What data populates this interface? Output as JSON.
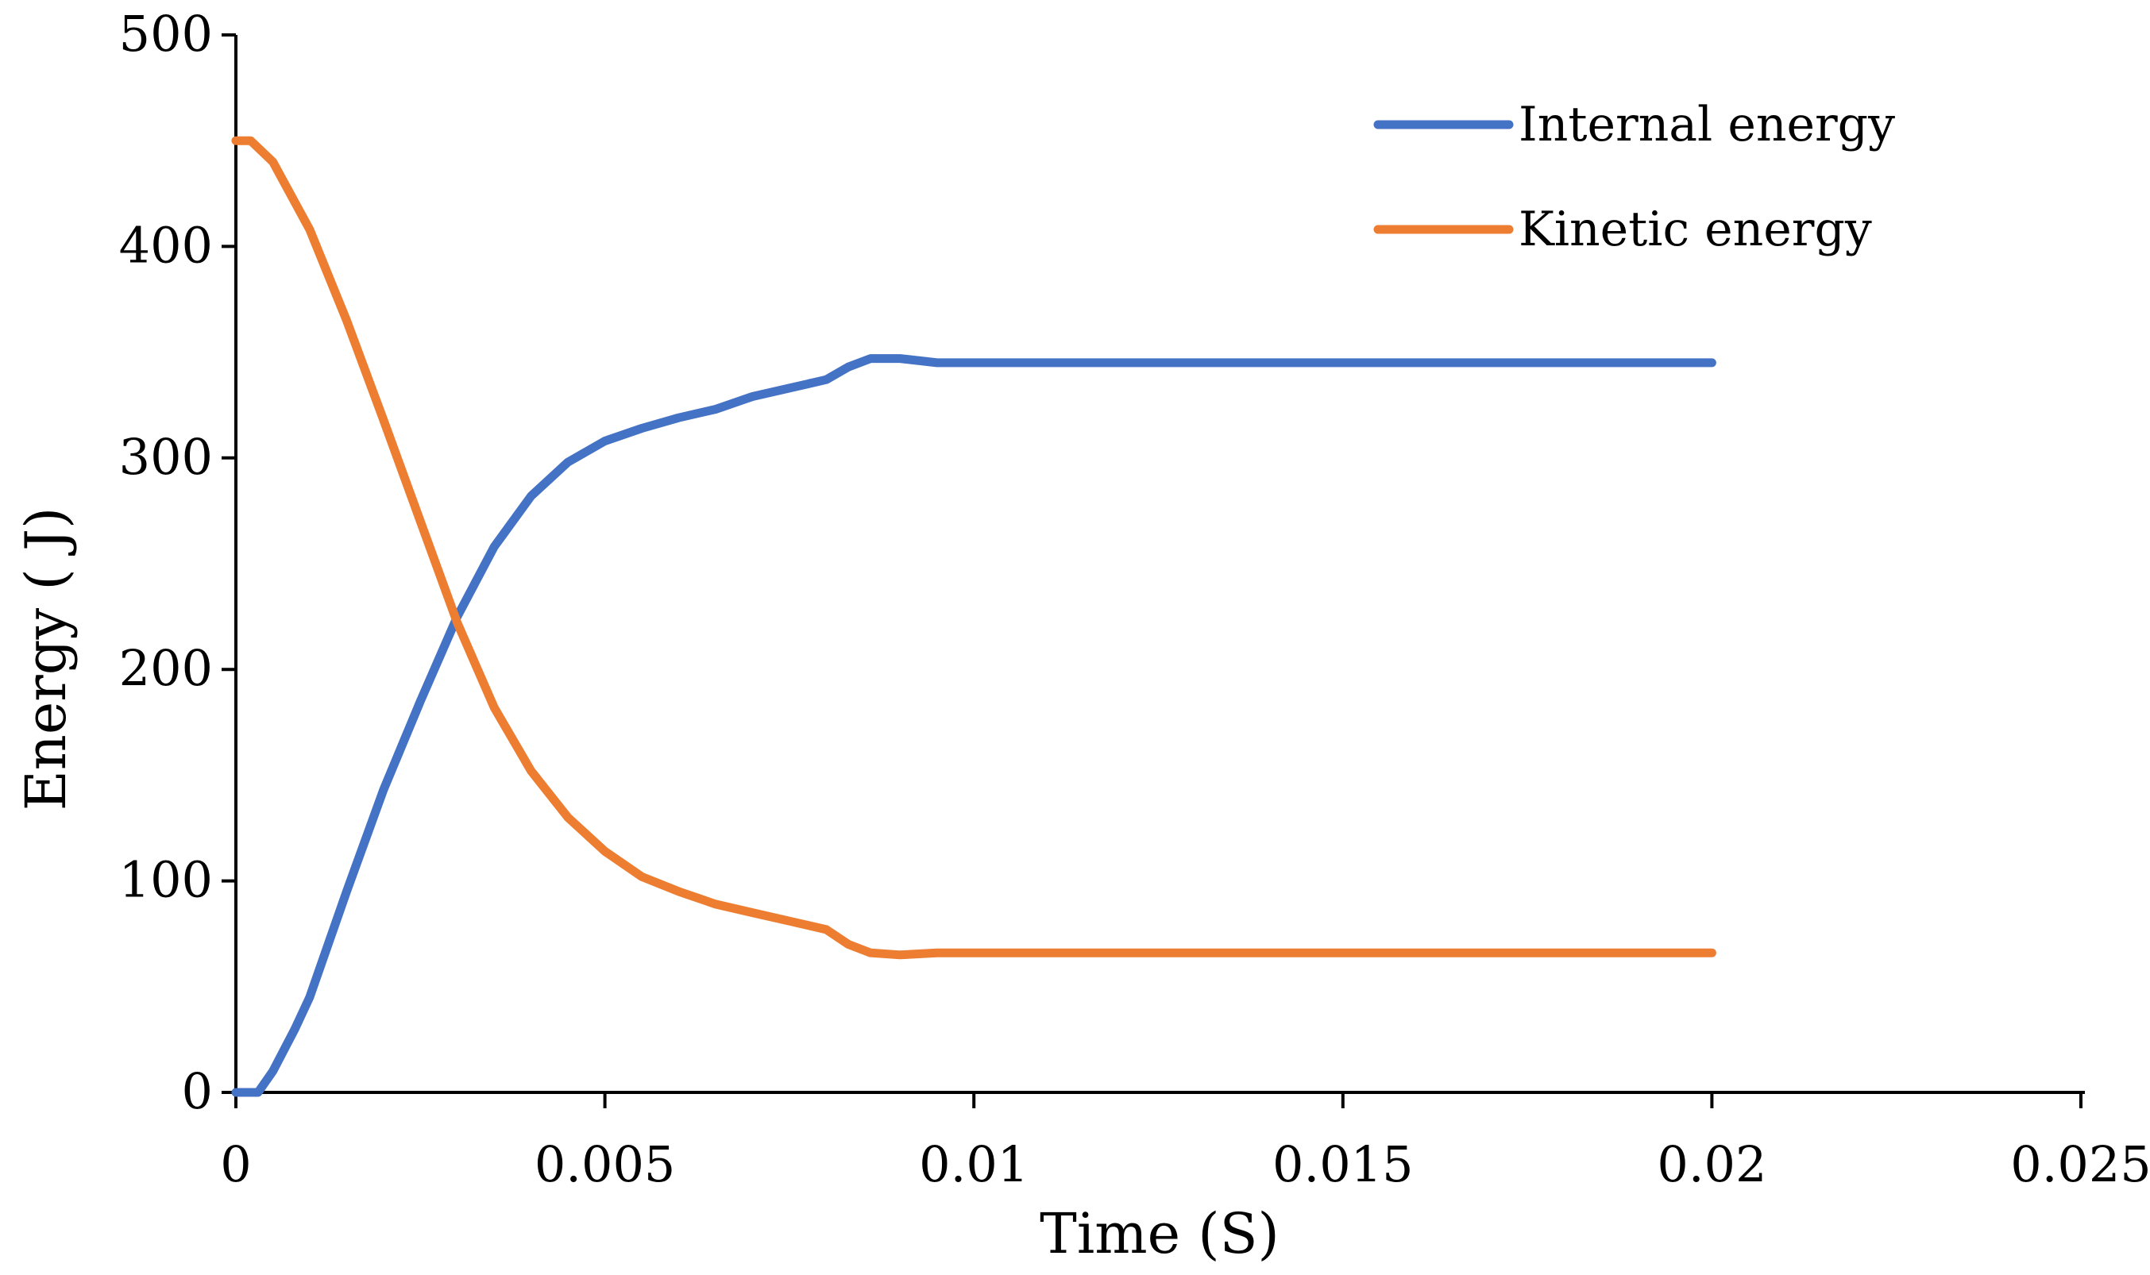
{
  "chart_data": {
    "type": "line",
    "title": "",
    "xlabel": "Time (S)",
    "ylabel": "Energy ( J)",
    "xlim": [
      0,
      0.025
    ],
    "ylim": [
      0,
      500
    ],
    "x_ticks": [
      {
        "value": 0,
        "label": "0"
      },
      {
        "value": 0.005,
        "label": "0.005"
      },
      {
        "value": 0.01,
        "label": "0.01"
      },
      {
        "value": 0.015,
        "label": "0.015"
      },
      {
        "value": 0.02,
        "label": "0.02"
      },
      {
        "value": 0.025,
        "label": "0.025"
      }
    ],
    "y_ticks": [
      {
        "value": 0,
        "label": "0"
      },
      {
        "value": 100,
        "label": "100"
      },
      {
        "value": 200,
        "label": "200"
      },
      {
        "value": 300,
        "label": "300"
      },
      {
        "value": 400,
        "label": "400"
      },
      {
        "value": 500,
        "label": "500"
      }
    ],
    "grid": false,
    "legend_position": "top-right",
    "series": [
      {
        "name": "Internal energy",
        "color": "#4472C4",
        "points": [
          [
            0,
            0
          ],
          [
            0.0003,
            0
          ],
          [
            0.0005,
            10
          ],
          [
            0.0008,
            30
          ],
          [
            0.001,
            45
          ],
          [
            0.0015,
            95
          ],
          [
            0.002,
            143
          ],
          [
            0.0025,
            185
          ],
          [
            0.003,
            225
          ],
          [
            0.0035,
            258
          ],
          [
            0.004,
            282
          ],
          [
            0.0045,
            298
          ],
          [
            0.005,
            308
          ],
          [
            0.0055,
            314
          ],
          [
            0.006,
            319
          ],
          [
            0.0065,
            323
          ],
          [
            0.007,
            329
          ],
          [
            0.0075,
            333
          ],
          [
            0.008,
            337
          ],
          [
            0.0083,
            343
          ],
          [
            0.0086,
            347
          ],
          [
            0.009,
            347
          ],
          [
            0.0095,
            345
          ],
          [
            0.01,
            345
          ],
          [
            0.012,
            345
          ],
          [
            0.015,
            345
          ],
          [
            0.018,
            345
          ],
          [
            0.02,
            345
          ]
        ]
      },
      {
        "name": "Kinetic energy",
        "color": "#ED7D31",
        "points": [
          [
            0,
            450
          ],
          [
            0.0002,
            450
          ],
          [
            0.0005,
            440
          ],
          [
            0.001,
            408
          ],
          [
            0.0015,
            365
          ],
          [
            0.002,
            318
          ],
          [
            0.0025,
            270
          ],
          [
            0.003,
            222
          ],
          [
            0.0035,
            182
          ],
          [
            0.004,
            152
          ],
          [
            0.0045,
            130
          ],
          [
            0.005,
            114
          ],
          [
            0.0055,
            102
          ],
          [
            0.006,
            95
          ],
          [
            0.0065,
            89
          ],
          [
            0.007,
            85
          ],
          [
            0.0075,
            81
          ],
          [
            0.008,
            77
          ],
          [
            0.0083,
            70
          ],
          [
            0.0086,
            66
          ],
          [
            0.009,
            65
          ],
          [
            0.0095,
            66
          ],
          [
            0.01,
            66
          ],
          [
            0.012,
            66
          ],
          [
            0.015,
            66
          ],
          [
            0.018,
            66
          ],
          [
            0.02,
            66
          ]
        ]
      }
    ]
  }
}
